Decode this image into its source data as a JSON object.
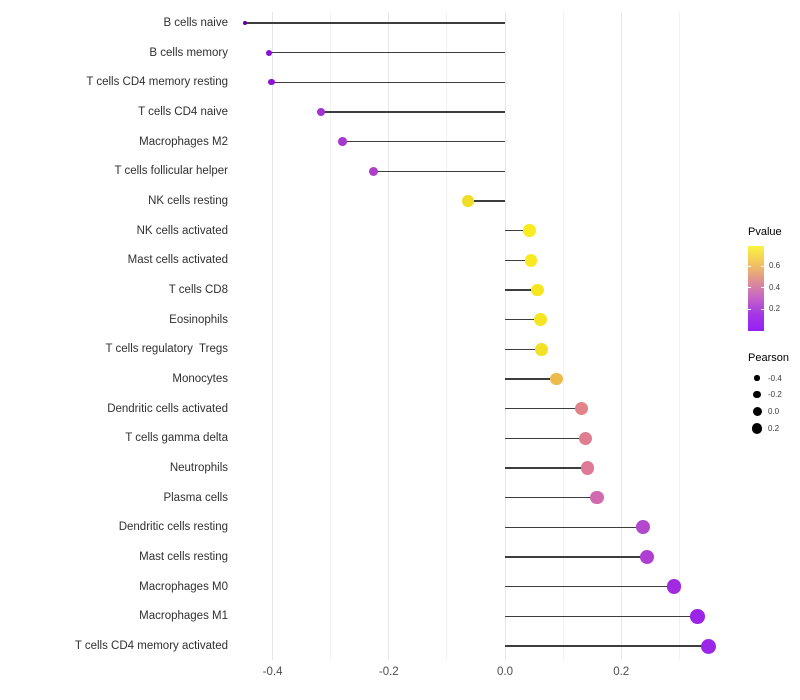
{
  "chart_data": {
    "type": "lollipop",
    "title": "",
    "xlabel": "",
    "ylabel": "",
    "x_tick_labels": [
      "-0.4",
      "-0.2",
      "0.0",
      "0.2"
    ],
    "x_ticks": [
      -0.4,
      -0.2,
      0.0,
      0.2
    ],
    "x_minor_ticks": [
      -0.3,
      -0.1,
      0.1,
      0.3
    ],
    "xlim": [
      -0.48,
      0.38
    ],
    "baseline": 0.0,
    "grid": true,
    "rows": [
      {
        "label": "B cells naive",
        "pearson": -0.448,
        "color": "#5d02a5"
      },
      {
        "label": "B cells memory",
        "pearson": -0.406,
        "color": "#8a12d6"
      },
      {
        "label": "T cells CD4 memory resting",
        "pearson": -0.402,
        "color": "#8c14d5"
      },
      {
        "label": "T cells CD4 naive",
        "pearson": -0.317,
        "color": "#a033d2"
      },
      {
        "label": "Macrophages M2",
        "pearson": -0.28,
        "color": "#a637cf"
      },
      {
        "label": "T cells follicular helper",
        "pearson": -0.226,
        "color": "#ad3fcc"
      },
      {
        "label": "NK cells resting",
        "pearson": -0.064,
        "color": "#f0dd2a"
      },
      {
        "label": "NK cells activated",
        "pearson": 0.042,
        "color": "#f8eb1e"
      },
      {
        "label": "Mast cells activated",
        "pearson": 0.045,
        "color": "#f8ea1f"
      },
      {
        "label": "T cells CD8",
        "pearson": 0.056,
        "color": "#f6e620"
      },
      {
        "label": "Eosinophils",
        "pearson": 0.061,
        "color": "#f5e522"
      },
      {
        "label": "T cells regulatory  Tregs",
        "pearson": 0.063,
        "color": "#f3e125"
      },
      {
        "label": "Monocytes",
        "pearson": 0.088,
        "color": "#edba4c"
      },
      {
        "label": "Dendritic cells activated",
        "pearson": 0.132,
        "color": "#e2828a"
      },
      {
        "label": "T cells gamma delta",
        "pearson": 0.138,
        "color": "#df7e90"
      },
      {
        "label": "Neutrophils",
        "pearson": 0.142,
        "color": "#dd7b97"
      },
      {
        "label": "Plasma cells",
        "pearson": 0.158,
        "color": "#d169ae"
      },
      {
        "label": "Dendritic cells resting",
        "pearson": 0.237,
        "color": "#b248cb"
      },
      {
        "label": "Mast cells resting",
        "pearson": 0.245,
        "color": "#b03ed3"
      },
      {
        "label": "Macrophages M0",
        "pearson": 0.291,
        "color": "#a22ae0"
      },
      {
        "label": "Macrophages M1",
        "pearson": 0.332,
        "color": "#9c24e6"
      },
      {
        "label": "T cells CD4 memory activated",
        "pearson": 0.35,
        "color": "#9c27e8"
      }
    ],
    "legend_pvalue": {
      "title": "Pvalue",
      "tick_labels": [
        "0.6",
        "0.4",
        "0.2"
      ],
      "gradient": [
        "#fbf43e",
        "#f2c55f",
        "#e0928f",
        "#c667c5",
        "#a438e5",
        "#9420f5"
      ],
      "position": "right"
    },
    "legend_pearson": {
      "title": "Pearson",
      "tick_labels": [
        "-0.4",
        "-0.2",
        "0.0",
        "0.2"
      ],
      "tick_values": [
        -0.4,
        -0.2,
        0.0,
        0.2
      ],
      "dot_color": "#000000",
      "position": "right"
    }
  },
  "colors": {
    "background": "#ffffff",
    "stem": "#3d3d3d",
    "grid_major": "#e7e7e7",
    "grid_minor": "#f1f1f1",
    "axis_text": "#4d4d4d",
    "label_text": "#303030"
  }
}
